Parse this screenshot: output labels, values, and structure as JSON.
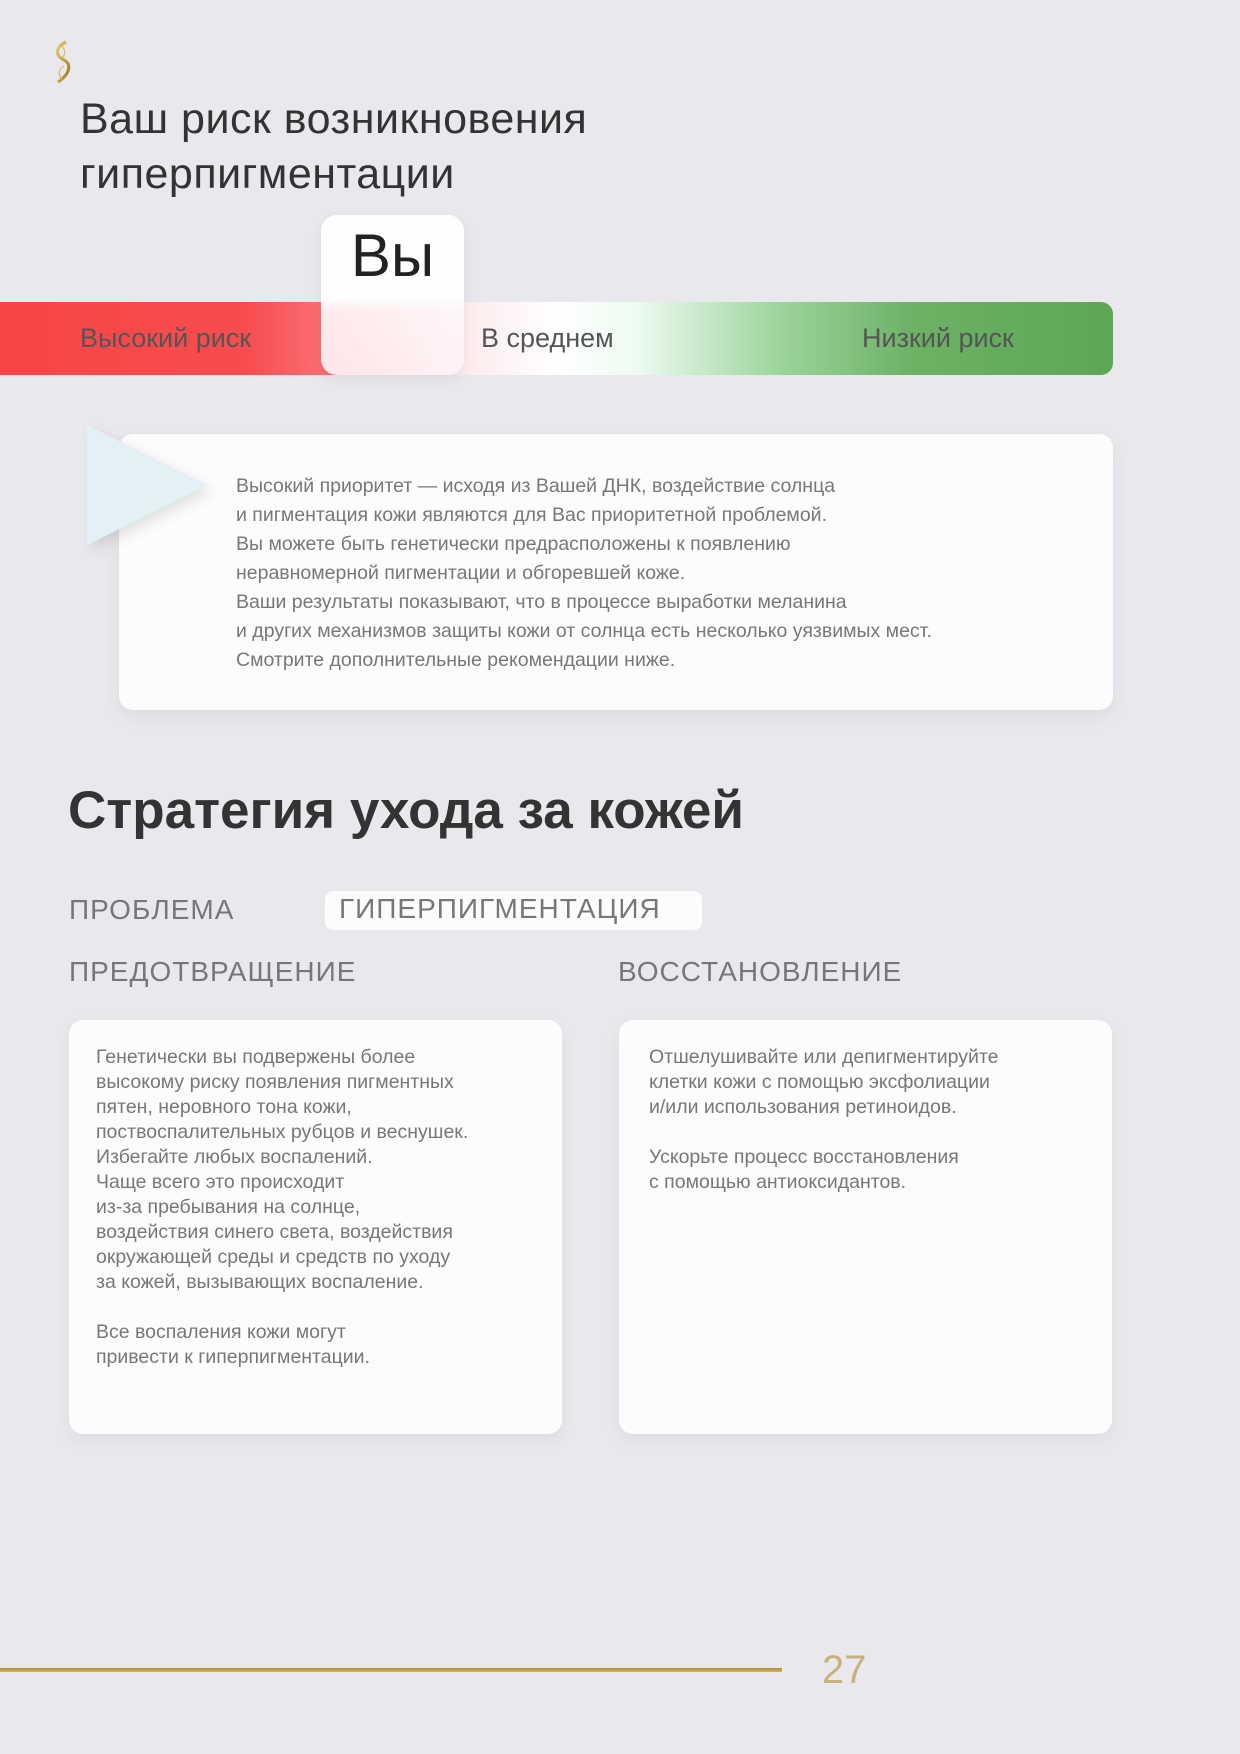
{
  "logo": {
    "icon": "dna-helix-logo",
    "color": "#c9a13b"
  },
  "title": {
    "lines": [
      "Ваш риск возникновения",
      "гиперпигментации"
    ]
  },
  "risk_scale": {
    "marker_label": "Вы",
    "marker_position": "high-to-average boundary",
    "labels": {
      "high": "Высокий риск",
      "average": "В среднем",
      "low": "Низкий риск"
    },
    "colors": {
      "high": "#f84547",
      "average": "#ffffff",
      "low": "#5ea655"
    }
  },
  "info_card": {
    "lines": [
      "Высокий приоритет — исходя из Вашей ДНК, воздействие солнца",
      "и пигментация кожи являются для Вас приоритетной проблемой.",
      "Вы можете быть генетически предрасположены к появлению",
      "неравномерной пигментации и обгоревшей коже.",
      "Ваши результаты показывают, что в процессе выработки меланина",
      "и других механизмов защиты кожи от солнца есть несколько уязвимых мест.",
      "Смотрите дополнительные рекомендации ниже."
    ]
  },
  "strategy": {
    "heading": "Стратегия ухода за кожей",
    "problem_label": "ПРОБЛЕМА",
    "problem_value": "ГИПЕРПИГМЕНТАЦИЯ",
    "prevention": {
      "heading": "ПРЕДОТВРАЩЕНИЕ",
      "lines": [
        "Генетически вы подвержены более",
        "высокому риску появления пигментных",
        "пятен, неровного тона кожи,",
        "поствоспалительных рубцов и веснушек.",
        "Избегайте любых воспалений.",
        "Чаще всего это происходит",
        "из-за пребывания на солнце,",
        "воздействия синего света, воздействия",
        "окружающей среды и средств по уходу",
        "за кожей, вызывающих воспаление.",
        "",
        "Все воспаления кожи могут",
        "привести к гиперпигментации."
      ]
    },
    "recovery": {
      "heading": "ВОССТАНОВЛЕНИЕ",
      "lines": [
        "Отшелушивайте или депигментируйте",
        "клетки кожи с помощью эксфолиации",
        "и/или использования ретиноидов.",
        "",
        "Ускорьте процесс восстановления",
        "с помощью антиоксидантов."
      ]
    }
  },
  "footer": {
    "page_number": "27",
    "accent_color": "#c9a13b"
  }
}
